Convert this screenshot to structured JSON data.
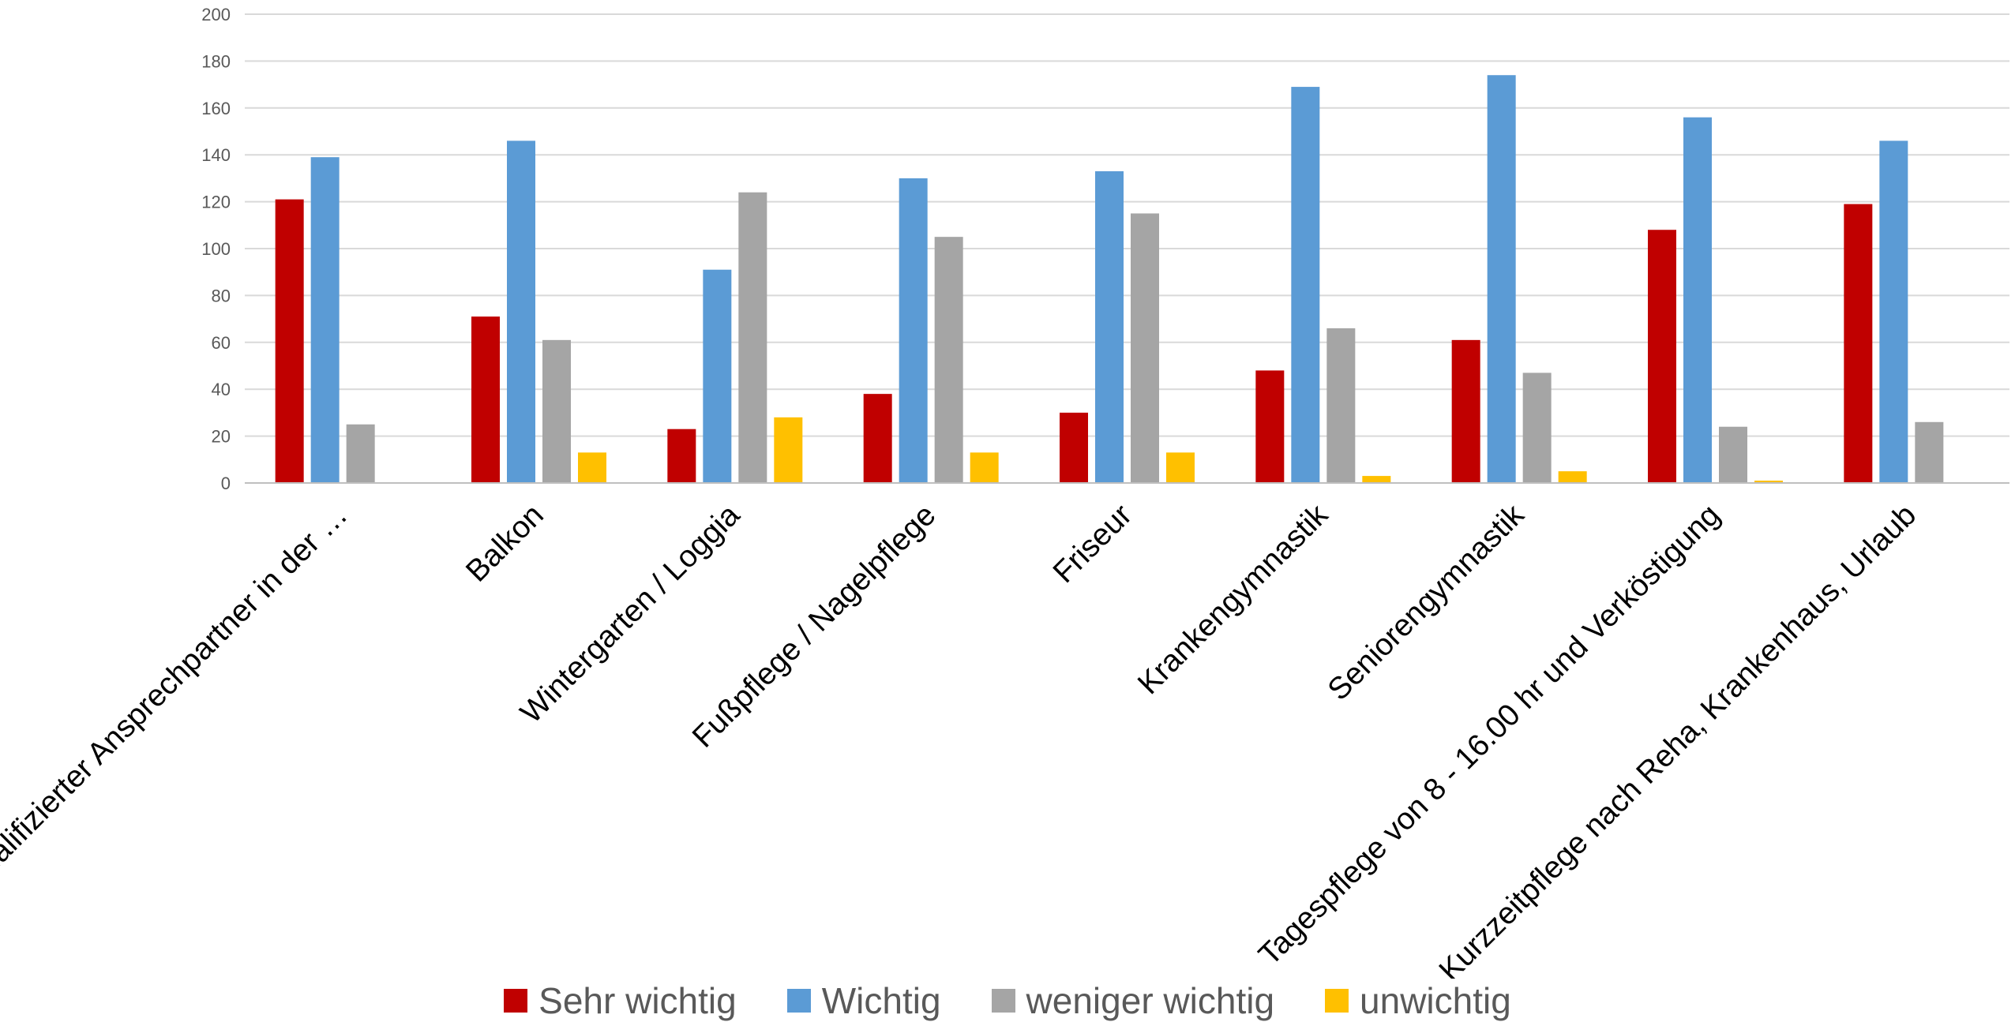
{
  "chart_data": {
    "type": "bar",
    "categories": [
      "Qualifizierter Ansprechpartner in der …",
      "Balkon",
      "Wintergarten / Loggia",
      "Fußpflege / Nagelpflege",
      "Friseur",
      "Krankengymnastik",
      "Seniorengymnastik",
      "Tagespflege von 8 - 16.00 hr und Verköstigung",
      "Kurzzeitpflege nach Reha, Krankenhaus, Urlaub"
    ],
    "series": [
      {
        "name": "Sehr wichtig",
        "color": "#C00000",
        "values": [
          121,
          71,
          23,
          38,
          30,
          48,
          61,
          108,
          119
        ]
      },
      {
        "name": "Wichtig",
        "color": "#5B9BD5",
        "values": [
          139,
          146,
          91,
          130,
          133,
          169,
          174,
          156,
          146
        ]
      },
      {
        "name": "weniger wichtig",
        "color": "#A5A5A5",
        "values": [
          25,
          61,
          124,
          105,
          115,
          66,
          47,
          24,
          26
        ]
      },
      {
        "name": "unwichtig",
        "color": "#FFC000",
        "values": [
          0,
          13,
          28,
          13,
          13,
          3,
          5,
          1,
          0
        ]
      }
    ],
    "ylim": [
      0,
      200
    ],
    "yticks": [
      0,
      20,
      40,
      60,
      80,
      100,
      120,
      140,
      160,
      180,
      200
    ],
    "grid": true,
    "legend_position": "bottom",
    "title": "",
    "xlabel": "",
    "ylabel": ""
  }
}
